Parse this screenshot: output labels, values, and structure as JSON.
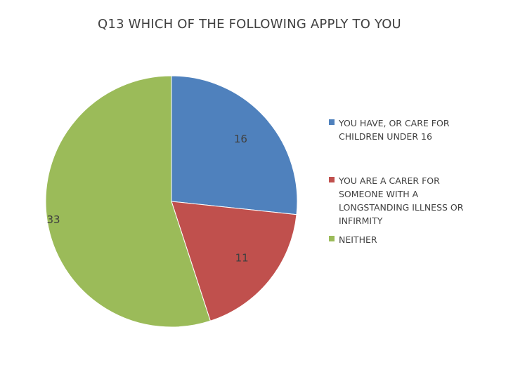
{
  "chart_data": {
    "type": "pie",
    "title": "Q13 WHICH OF THE FOLLOWING APPLY TO YOU",
    "categories": [
      "YOU HAVE, OR CARE FOR CHILDREN UNDER 16",
      "YOU ARE A CARER FOR SOMEONE WITH A LONGSTANDING ILLNESS OR INFIRMITY",
      "NEITHER"
    ],
    "values": [
      16,
      11,
      33
    ],
    "colors": [
      "#4f81bd",
      "#c0504d",
      "#9bbb59"
    ],
    "legend_position": "right"
  },
  "legend": [
    {
      "lines": [
        "YOU HAVE, OR CARE FOR",
        "CHILDREN UNDER 16"
      ],
      "color": "#4f81bd"
    },
    {
      "lines": [
        "YOU ARE A CARER FOR",
        "SOMEONE WITH A",
        "LONGSTANDING ILLNESS OR",
        "INFIRMITY"
      ],
      "color": "#c0504d"
    },
    {
      "lines": [
        "NEITHER"
      ],
      "color": "#9bbb59"
    }
  ]
}
